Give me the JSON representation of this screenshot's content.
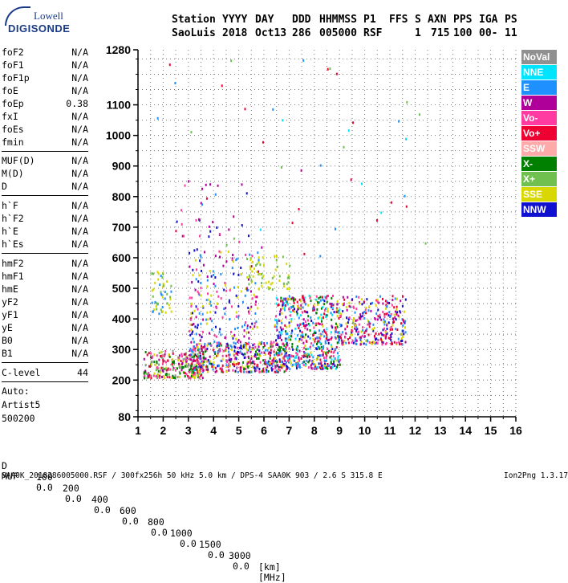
{
  "logo": {
    "line1": "Lowell",
    "line2": "DIGISONDE"
  },
  "header": {
    "row1": [
      "Station",
      "YYYY",
      "DAY",
      "DDD",
      "HHMMSS",
      "P1",
      "FFS",
      "S",
      "AXN",
      "PPS",
      "IGA",
      "PS"
    ],
    "row2": [
      "SaoLuis",
      "2018",
      "Oct13",
      "286",
      "005000",
      "RSF",
      "1",
      "715",
      "100",
      "00-",
      "11"
    ]
  },
  "params": [
    {
      "label": "foF2",
      "value": "N/A"
    },
    {
      "label": "foF1",
      "value": "N/A"
    },
    {
      "label": "foF1p",
      "value": "N/A"
    },
    {
      "label": "foE",
      "value": "N/A"
    },
    {
      "label": "foEp",
      "value": "0.38"
    },
    {
      "label": "fxI",
      "value": "N/A"
    },
    {
      "label": "foEs",
      "value": "N/A"
    },
    {
      "label": "fmin",
      "value": "N/A"
    },
    {
      "label": "MUF(D)",
      "value": "N/A"
    },
    {
      "label": "M(D)",
      "value": "N/A"
    },
    {
      "label": "D",
      "value": "N/A"
    },
    {
      "label": "h`F",
      "value": "N/A"
    },
    {
      "label": "h`F2",
      "value": "N/A"
    },
    {
      "label": "h`E",
      "value": "N/A"
    },
    {
      "label": "h`Es",
      "value": "N/A"
    },
    {
      "label": "hmF2",
      "value": "N/A"
    },
    {
      "label": "hmF1",
      "value": "N/A"
    },
    {
      "label": "hmE",
      "value": "N/A"
    },
    {
      "label": "yF2",
      "value": "N/A"
    },
    {
      "label": "yF1",
      "value": "N/A"
    },
    {
      "label": "yE",
      "value": "N/A"
    },
    {
      "label": "B0",
      "value": "N/A"
    },
    {
      "label": "B1",
      "value": "N/A"
    },
    {
      "label": "C-level",
      "value": "44"
    }
  ],
  "auto": {
    "line1": "Auto:",
    "line2": "Artist5",
    "line3": "500200"
  },
  "legend": [
    {
      "label": "NoVal",
      "color": "#909090"
    },
    {
      "label": "NNE",
      "color": "#00e5ff"
    },
    {
      "label": "E",
      "color": "#1e90ff"
    },
    {
      "label": "W",
      "color": "#b0009a"
    },
    {
      "label": "Vo-",
      "color": "#ff3aa0"
    },
    {
      "label": "Vo+",
      "color": "#ee0033"
    },
    {
      "label": "SSW",
      "color": "#ffaaaa"
    },
    {
      "label": "X-",
      "color": "#008000"
    },
    {
      "label": "X+",
      "color": "#70c050"
    },
    {
      "label": "SSE",
      "color": "#d8d800"
    },
    {
      "label": "NNW",
      "color": "#1010d0"
    }
  ],
  "muf_table": {
    "d_label": "D",
    "d_values": [
      "100",
      "200",
      "400",
      "600",
      "800",
      "1000",
      "1500",
      "3000"
    ],
    "d_unit": "[km]",
    "muf_label": "MUF",
    "muf_values": [
      "0.0",
      "0.0",
      "0.0",
      "0.0",
      "0.0",
      "0.0",
      "0.0",
      "0.0"
    ],
    "muf_unit": "[MHz]"
  },
  "footer": {
    "left": "SAA0K_2018286005000.RSF / 300fx256h 50 kHz 5.0 km / DPS-4 SAA0K 903 / 2.6 S 315.8 E",
    "right": "Ion2Png 1.3.17"
  },
  "chart_data": {
    "type": "scatter",
    "x_ticks": [
      1,
      2,
      3,
      4,
      5,
      6,
      7,
      8,
      9,
      10,
      11,
      12,
      13,
      14,
      15,
      16
    ],
    "y_ticks": [
      80,
      200,
      300,
      400,
      500,
      600,
      700,
      800,
      900,
      1000,
      1100,
      1280
    ],
    "xlim": [
      1,
      16
    ],
    "ylim": [
      80,
      1280
    ],
    "grid": true,
    "clusters": [
      {
        "x": [
          1.2,
          3.6
        ],
        "y": [
          210,
          300
        ],
        "density": 260,
        "colors": [
          "Vo+",
          "Vo-",
          "W",
          "X-",
          "SSE",
          "X+",
          "NoVal"
        ]
      },
      {
        "x": [
          3.0,
          7.0
        ],
        "y": [
          230,
          330
        ],
        "density": 420,
        "colors": [
          "Vo+",
          "Vo-",
          "W",
          "X-",
          "NNW",
          "E",
          "SSE"
        ]
      },
      {
        "x": [
          6.4,
          9.0
        ],
        "y": [
          240,
          480
        ],
        "density": 560,
        "colors": [
          "Vo+",
          "Vo-",
          "W",
          "NNW",
          "X-",
          "SSE",
          "NNE",
          "E"
        ]
      },
      {
        "x": [
          9.0,
          11.6
        ],
        "y": [
          320,
          480
        ],
        "density": 300,
        "colors": [
          "W",
          "Vo+",
          "Vo-",
          "SSE",
          "NNW",
          "E"
        ]
      },
      {
        "x": [
          3.0,
          5.8
        ],
        "y": [
          300,
          640
        ],
        "density": 240,
        "colors": [
          "W",
          "Vo-",
          "NNW",
          "E",
          "SSE"
        ]
      },
      {
        "x": [
          5.3,
          7.0
        ],
        "y": [
          500,
          610
        ],
        "density": 60,
        "colors": [
          "SSE",
          "X+"
        ]
      },
      {
        "x": [
          1.5,
          2.3
        ],
        "y": [
          420,
          560
        ],
        "density": 50,
        "colors": [
          "SSE",
          "X+",
          "E"
        ]
      },
      {
        "x": [
          2.5,
          5.5
        ],
        "y": [
          650,
          860
        ],
        "density": 30,
        "colors": [
          "Vo-",
          "NNW",
          "W"
        ]
      },
      {
        "x": [
          1.5,
          12.5
        ],
        "y": [
          600,
          1270
        ],
        "density": 45,
        "colors": [
          "W",
          "Vo+",
          "NNE",
          "E",
          "X+"
        ]
      }
    ]
  }
}
